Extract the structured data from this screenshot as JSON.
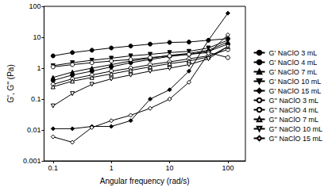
{
  "chart_data": {
    "type": "line",
    "xlabel": "Angular frequency (rad/s)",
    "ylabel": "G', G'' (Pa)",
    "log": true,
    "grid": false,
    "legend": "right",
    "xlim": [
      0.07,
      200
    ],
    "xticks": [
      0.1,
      1,
      10,
      100
    ],
    "ylim": [
      0.001,
      100
    ],
    "yticks": [
      0.001,
      0.01,
      0.1,
      1,
      10,
      100
    ],
    "x": [
      0.1,
      0.215,
      0.464,
      1,
      2.15,
      4.64,
      10,
      21.5,
      46.4,
      100
    ],
    "series": [
      {
        "name": "G' NaClO 3 mL",
        "color": "#000000",
        "marker": "circle",
        "values": [
          2.5,
          3.2,
          3.8,
          4.5,
          5.2,
          6,
          6.8,
          7,
          8,
          9
        ]
      },
      {
        "name": "G' NaClO 4 mL",
        "color": "#000000",
        "marker": "circle",
        "values": [
          0.4,
          0.6,
          0.8,
          1.1,
          1.5,
          1.9,
          2.4,
          2.8,
          3.5,
          6
        ]
      },
      {
        "name": "G' NaClO 7 mL",
        "color": "#000000",
        "marker": "triangle",
        "values": [
          0.5,
          0.75,
          1.0,
          1.3,
          1.7,
          2.1,
          2.6,
          3,
          3.8,
          7
        ]
      },
      {
        "name": "G' NaClO 10 mL",
        "color": "#000000",
        "marker": "triangle-down",
        "values": [
          1.2,
          1.5,
          1.8,
          2.1,
          2.5,
          2.8,
          3.2,
          3.5,
          4.5,
          8
        ]
      },
      {
        "name": "G' NaClO 15 mL",
        "color": "#000000",
        "marker": "diamond",
        "values": [
          0.011,
          0.011,
          0.013,
          0.013,
          0.02,
          0.1,
          0.2,
          0.8,
          8,
          60
        ]
      },
      {
        "name": "G'' NaClO 3 mL",
        "color": "#000000",
        "marker": "circle-open",
        "values": [
          1.1,
          1.3,
          1.5,
          1.7,
          1.9,
          2.2,
          2.5,
          2.8,
          3.2,
          2.2
        ]
      },
      {
        "name": "G'' NaClO 4 mL",
        "color": "#000000",
        "marker": "circle-open",
        "values": [
          0.3,
          0.45,
          0.6,
          0.8,
          1.0,
          1.3,
          1.6,
          2,
          2.5,
          4
        ]
      },
      {
        "name": "G'' NaClO 7 mL",
        "color": "#000000",
        "marker": "triangle-open",
        "values": [
          0.25,
          0.38,
          0.5,
          0.65,
          0.85,
          1.1,
          1.4,
          1.7,
          2.3,
          5
        ]
      },
      {
        "name": "G'' NaClO 10 mL",
        "color": "#000000",
        "marker": "triangle-down-open",
        "values": [
          0.06,
          0.15,
          0.3,
          0.45,
          0.6,
          0.8,
          1.0,
          1.3,
          2,
          5
        ]
      },
      {
        "name": "G'' NaClO 15 mL",
        "color": "#000000",
        "marker": "diamond-open",
        "values": [
          0.006,
          0.004,
          0.012,
          0.02,
          0.03,
          0.05,
          0.1,
          0.35,
          3,
          12
        ]
      }
    ]
  }
}
